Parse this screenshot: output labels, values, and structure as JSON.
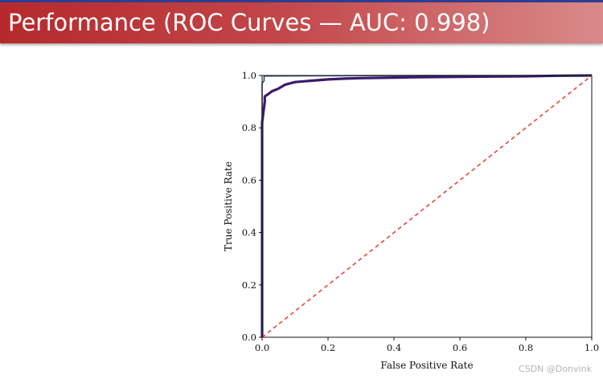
{
  "slide": {
    "title": "Performance (ROC Curves — AUC: 0.998)",
    "watermark": "CSDN @Donvink"
  },
  "colors": {
    "title_bar_start": "#b5292c",
    "title_bar_end": "#d9898a",
    "curve_color": "#3b1a6e",
    "top_curve_color": "#2e4a6b",
    "diagonal_color": "#e8453c"
  },
  "chart_data": {
    "type": "line",
    "title": "",
    "xlabel": "False Positive Rate",
    "ylabel": "True Positive Rate",
    "xlim": [
      0.0,
      1.0
    ],
    "ylim": [
      0.0,
      1.0
    ],
    "xticks": [
      "0.0",
      "0.2",
      "0.4",
      "0.6",
      "0.8",
      "1.0"
    ],
    "yticks": [
      "0.0",
      "0.2",
      "0.4",
      "0.6",
      "0.8",
      "1.0"
    ],
    "grid": false,
    "series": [
      {
        "style": "solid",
        "x": [
          0.0,
          0.0,
          0.004,
          0.008,
          0.008,
          0.02,
          0.03,
          0.05,
          0.07,
          0.1,
          0.15,
          0.2,
          0.25,
          0.3,
          0.4,
          0.5,
          0.6,
          0.7,
          0.8,
          0.9,
          1.0
        ],
        "y": [
          0.0,
          0.82,
          0.86,
          0.9,
          0.92,
          0.93,
          0.94,
          0.95,
          0.965,
          0.975,
          0.98,
          0.985,
          0.988,
          0.99,
          0.992,
          0.994,
          0.995,
          0.996,
          0.997,
          0.999,
          1.0
        ]
      },
      {
        "style": "solid",
        "x": [
          0.0,
          0.0,
          0.006,
          0.006,
          0.2,
          0.5,
          1.0
        ],
        "y": [
          0.0,
          0.97,
          0.98,
          0.998,
          0.999,
          1.0,
          1.0
        ]
      },
      {
        "style": "dashed",
        "x": [
          0.0,
          1.0
        ],
        "y": [
          0.0,
          1.0
        ]
      }
    ]
  }
}
